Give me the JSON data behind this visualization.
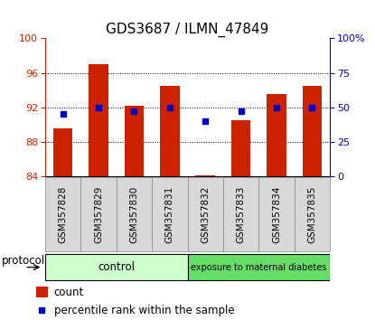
{
  "title": "GDS3687 / ILMN_47849",
  "samples": [
    "GSM357828",
    "GSM357829",
    "GSM357830",
    "GSM357831",
    "GSM357832",
    "GSM357833",
    "GSM357834",
    "GSM357835"
  ],
  "bar_values": [
    89.5,
    97.0,
    92.2,
    94.5,
    84.1,
    90.5,
    93.5,
    94.5
  ],
  "dot_percentiles": [
    45,
    50,
    47,
    50,
    40,
    47,
    50,
    50
  ],
  "ylim_left": [
    84,
    100
  ],
  "ylim_right": [
    0,
    100
  ],
  "yticks_left": [
    84,
    88,
    92,
    96,
    100
  ],
  "yticks_right": [
    0,
    25,
    50,
    75,
    100
  ],
  "ytick_labels_right": [
    "0",
    "25",
    "50",
    "75",
    "100%"
  ],
  "bar_color": "#cc2200",
  "dot_color": "#0000cc",
  "control_color": "#ccffcc",
  "diabetes_color": "#66dd66",
  "control_label": "control",
  "diabetes_label": "exposure to maternal diabetes",
  "protocol_label": "protocol",
  "legend_count": "count",
  "legend_percentile": "percentile rank within the sample",
  "n_control": 4,
  "n_diabetes": 4,
  "title_fontsize": 11,
  "tick_fontsize": 8,
  "label_fontsize": 8.5,
  "sample_fontsize": 7.5
}
